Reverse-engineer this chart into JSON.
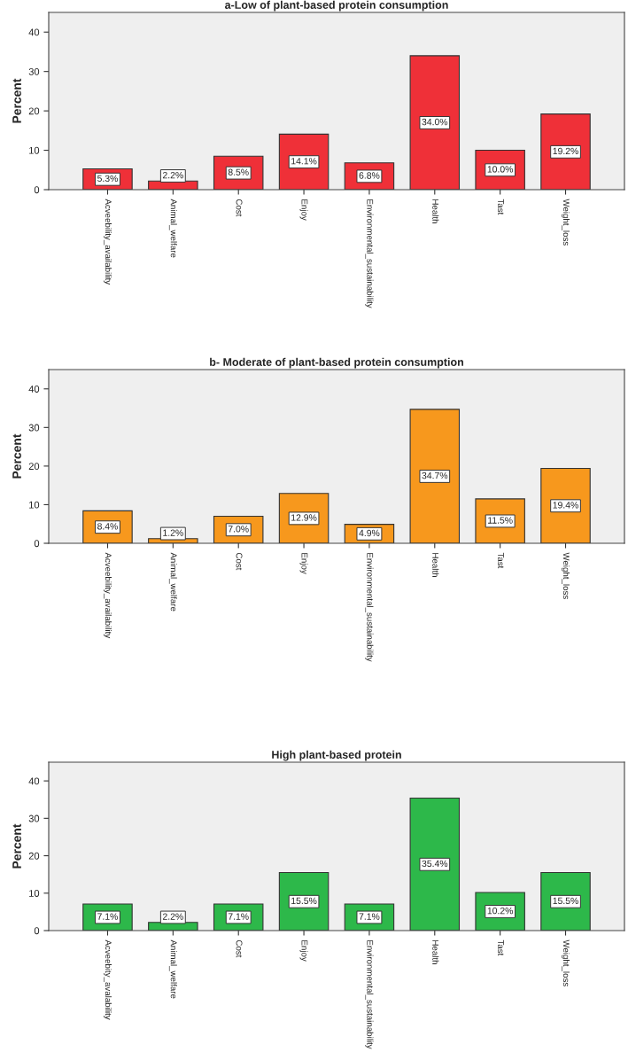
{
  "chart_data": [
    {
      "type": "bar",
      "title": "a-Low of plant-based protein consumption",
      "ylabel": "Percent",
      "categories": [
        "Acveebility_availability",
        "Animal_welfare",
        "Cost",
        "Enjoy",
        "Environmental_sustainability",
        "Health",
        "Tast",
        "Weight_loss"
      ],
      "values": [
        5.3,
        2.2,
        8.5,
        14.1,
        6.8,
        34.0,
        10.0,
        19.2
      ],
      "color": "#ef3038",
      "value_labels": [
        "5.3%",
        "2.2%",
        "8.5%",
        "14.1%",
        "6.8%",
        "34.0%",
        "10.0%",
        "19.2%"
      ],
      "ylim": [
        0,
        45
      ],
      "yticks": [
        0,
        10,
        20,
        30,
        40
      ],
      "grid": false
    },
    {
      "type": "bar",
      "title": "b- Moderate of plant-based protein consumption",
      "ylabel": "Percent",
      "categories": [
        "Acveebility_availability",
        "Animal_welfare",
        "Cost",
        "Enjoy",
        "Environmental_sustainability",
        "Health",
        "Tast",
        "Weight_loss"
      ],
      "values": [
        8.4,
        1.2,
        7.0,
        12.9,
        4.9,
        34.7,
        11.5,
        19.4
      ],
      "color": "#f7981d",
      "value_labels": [
        "8.4%",
        "1.2%",
        "7.0%",
        "12.9%",
        "4.9%",
        "34.7%",
        "11.5%",
        "19.4%"
      ],
      "ylim": [
        0,
        45
      ],
      "yticks": [
        0,
        10,
        20,
        30,
        40
      ],
      "grid": false
    },
    {
      "type": "bar",
      "title": "High plant-based protein",
      "ylabel": "Percent",
      "categories": [
        "Acveebity_avalability",
        "Animal_welfare",
        "Cost",
        "Enjoy",
        "Environmental_sustainability",
        "Health",
        "Tast",
        "Weight_loss"
      ],
      "values": [
        7.1,
        2.2,
        7.1,
        15.5,
        7.1,
        35.4,
        10.2,
        15.5
      ],
      "color": "#2db84a",
      "value_labels": [
        "7.1%",
        "2.2%",
        "7.1%",
        "15.5%",
        "7.1%",
        "35.4%",
        "10.2%",
        "15.5%"
      ],
      "ylim": [
        0,
        45
      ],
      "yticks": [
        0,
        10,
        20,
        30,
        40
      ],
      "grid": false
    }
  ]
}
